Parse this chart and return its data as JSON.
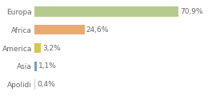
{
  "categories": [
    "Europa",
    "Africa",
    "America",
    "Asia",
    "Apolidi"
  ],
  "values": [
    70.9,
    24.6,
    3.2,
    1.1,
    0.4
  ],
  "labels": [
    "70,9%",
    "24,6%",
    "3,2%",
    "1,1%",
    "0,4%"
  ],
  "bar_colors": [
    "#b5cb8e",
    "#e8aa72",
    "#d4c84e",
    "#7799cc",
    "#cccccc"
  ],
  "background_color": "#ffffff",
  "text_color": "#666666",
  "label_fontsize": 6.5,
  "tick_fontsize": 6.5,
  "bar_height": 0.55,
  "xlim": [
    0,
    92
  ],
  "grid_color": "#dddddd"
}
